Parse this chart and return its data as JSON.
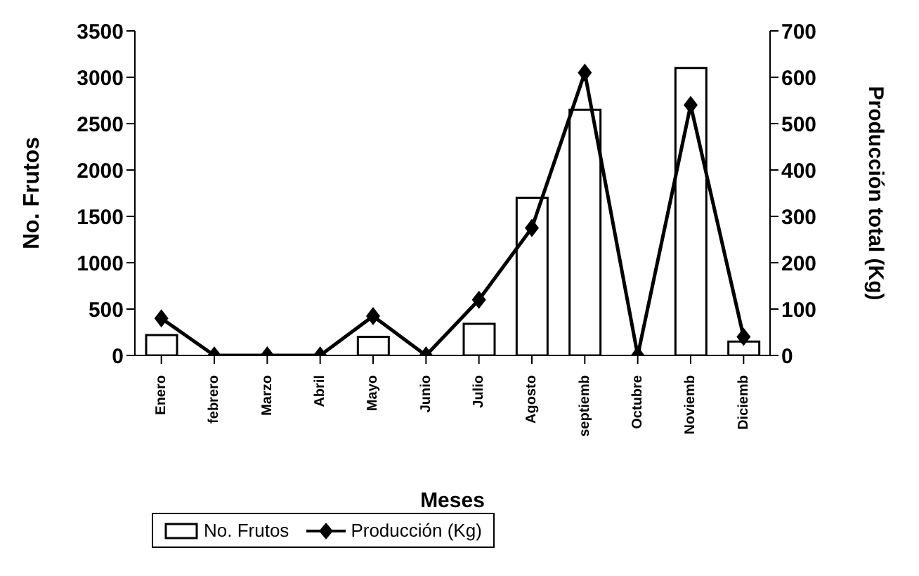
{
  "chart_data": {
    "type": "bar",
    "xlabel": "Meses",
    "ylabel": "No. Frutos",
    "y2label": "Producción total (Kg)",
    "categories": [
      "Enero",
      "febrero",
      "Marzo",
      "Abril",
      "Mayo",
      "Junio",
      "Julio",
      "Agosto",
      "septiemb",
      "Octubre",
      "Noviemb",
      "Diciemb"
    ],
    "series": [
      {
        "name": "No. Frutos",
        "color": "#ffffff",
        "values": [
          220,
          0,
          0,
          0,
          200,
          0,
          340,
          1700,
          2650,
          0,
          3100,
          150
        ]
      },
      {
        "name": "Producción (Kg)",
        "type": "line",
        "axis": "y2",
        "color": "#000000",
        "marker": "diamond",
        "values": [
          80,
          0,
          0,
          0,
          85,
          0,
          120,
          275,
          610,
          0,
          540,
          40
        ]
      }
    ],
    "ylim": [
      0,
      3500
    ],
    "yticks": [
      0,
      500,
      1000,
      1500,
      2000,
      2500,
      3000,
      3500
    ],
    "y2lim": [
      0,
      700
    ],
    "y2ticks": [
      0,
      100,
      200,
      300,
      400,
      500,
      600,
      700
    ],
    "grid": false,
    "legend": "bottom"
  }
}
